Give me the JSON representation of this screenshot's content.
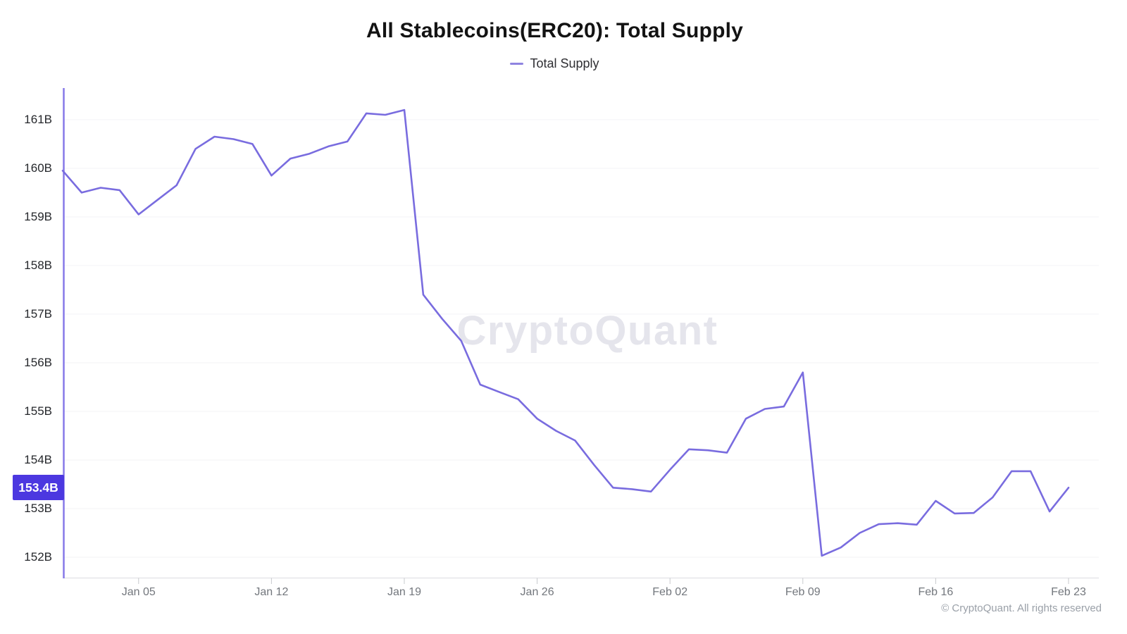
{
  "title": "All Stablecoins(ERC20): Total Supply",
  "legend": {
    "label": "Total Supply"
  },
  "watermark": "CryptoQuant",
  "footer": {
    "copyright": "© CryptoQuant. All rights reserved"
  },
  "colors": {
    "line": "#796cdf",
    "y_axis_line": "#8678e8",
    "x_axis_line": "#e1e1e5",
    "badge_bg": "#4c38e0",
    "badge_text": "#ffffff",
    "gridline": "#f3f3f6"
  },
  "chart_data": {
    "type": "line",
    "title": "All Stablecoins(ERC20): Total Supply",
    "legend_position": "top",
    "grid": "horizontal",
    "ylim": [
      151.58,
      161.65
    ],
    "current_value_label": "153.4B",
    "y_ticks": [
      {
        "label": "161B",
        "value": 161
      },
      {
        "label": "160B",
        "value": 160
      },
      {
        "label": "159B",
        "value": 159
      },
      {
        "label": "158B",
        "value": 158
      },
      {
        "label": "157B",
        "value": 157
      },
      {
        "label": "156B",
        "value": 156
      },
      {
        "label": "155B",
        "value": 155
      },
      {
        "label": "154B",
        "value": 154
      },
      {
        "label": "153B",
        "value": 153
      },
      {
        "label": "152B",
        "value": 152
      }
    ],
    "x_ticks": [
      {
        "label": "Jan 05",
        "index": 4
      },
      {
        "label": "Jan 12",
        "index": 11
      },
      {
        "label": "Jan 19",
        "index": 18
      },
      {
        "label": "Jan 26",
        "index": 25
      },
      {
        "label": "Feb 02",
        "index": 32
      },
      {
        "label": "Feb 09",
        "index": 39
      },
      {
        "label": "Feb 16",
        "index": 46
      },
      {
        "label": "Feb 23",
        "index": 53
      }
    ],
    "series": [
      {
        "name": "Total Supply",
        "x": [
          "Jan 01",
          "Jan 02",
          "Jan 03",
          "Jan 04",
          "Jan 05",
          "Jan 06",
          "Jan 07",
          "Jan 08",
          "Jan 09",
          "Jan 10",
          "Jan 11",
          "Jan 12",
          "Jan 13",
          "Jan 14",
          "Jan 15",
          "Jan 16",
          "Jan 17",
          "Jan 18",
          "Jan 19",
          "Jan 20",
          "Jan 21",
          "Jan 22",
          "Jan 23",
          "Jan 24",
          "Jan 25",
          "Jan 26",
          "Jan 27",
          "Jan 28",
          "Jan 29",
          "Jan 30",
          "Jan 31",
          "Feb 01",
          "Feb 02",
          "Feb 03",
          "Feb 04",
          "Feb 05",
          "Feb 06",
          "Feb 07",
          "Feb 08",
          "Feb 09",
          "Feb 10",
          "Feb 11",
          "Feb 12",
          "Feb 13",
          "Feb 14",
          "Feb 15",
          "Feb 16",
          "Feb 17",
          "Feb 18",
          "Feb 19",
          "Feb 20",
          "Feb 21",
          "Feb 22",
          "Feb 23"
        ],
        "values": [
          159.95,
          159.5,
          159.6,
          159.55,
          159.05,
          159.35,
          159.65,
          160.4,
          160.65,
          160.6,
          160.5,
          159.85,
          160.2,
          160.3,
          160.45,
          160.55,
          161.13,
          161.1,
          161.2,
          157.4,
          156.9,
          156.45,
          155.55,
          155.4,
          155.25,
          154.85,
          154.6,
          154.4,
          153.9,
          153.43,
          153.4,
          153.35,
          153.8,
          154.22,
          154.2,
          154.15,
          154.85,
          155.05,
          155.1,
          155.8,
          152.03,
          152.2,
          152.5,
          152.68,
          152.7,
          152.67,
          153.16,
          152.9,
          152.91,
          153.23,
          153.77,
          153.77,
          152.94,
          153.43
        ]
      }
    ]
  }
}
